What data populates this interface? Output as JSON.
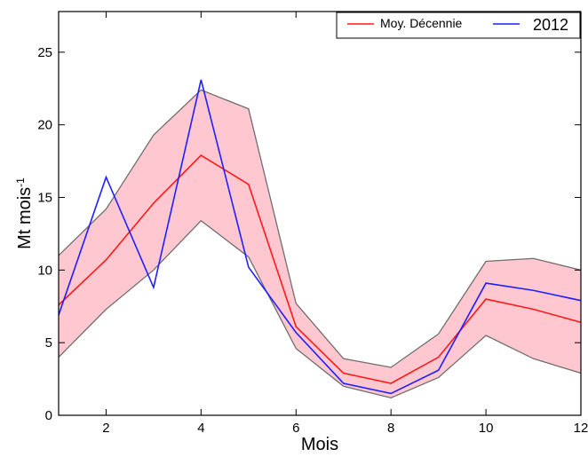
{
  "chart_data": {
    "type": "line",
    "xlabel": "Mois",
    "ylabel": "Mt mois",
    "ylabel_superscript": "-1",
    "xlim": [
      1,
      12
    ],
    "ylim": [
      0,
      27.8
    ],
    "xticks": [
      2,
      4,
      6,
      8,
      10,
      12
    ],
    "yticks": [
      0,
      5,
      10,
      15,
      20,
      25
    ],
    "grid": false,
    "legend_position": "top-right",
    "band": {
      "x": [
        1,
        2,
        3,
        4,
        5,
        6,
        7,
        8,
        9,
        10,
        11,
        12
      ],
      "upper": [
        11.0,
        14.2,
        19.3,
        22.4,
        21.1,
        7.7,
        3.9,
        3.3,
        5.6,
        10.6,
        10.8,
        10.0
      ],
      "lower": [
        4.0,
        7.3,
        10.0,
        13.4,
        10.9,
        4.6,
        2.0,
        1.2,
        2.6,
        5.5,
        3.9,
        2.9
      ],
      "fill_color": "#ffc8d0",
      "edge_color": "#6e6e6e"
    },
    "x": [
      1,
      2,
      3,
      4,
      5,
      6,
      7,
      8,
      9,
      10,
      11,
      12
    ],
    "series": [
      {
        "name": "Moy. Décennie",
        "color": "#ff1a1a",
        "values": [
          7.6,
          10.7,
          14.6,
          17.9,
          15.9,
          6.1,
          2.9,
          2.2,
          4.0,
          8.0,
          7.3,
          6.4
        ]
      },
      {
        "name": "2012",
        "color": "#1f1fff",
        "values": [
          6.9,
          16.4,
          8.8,
          23.1,
          10.2,
          5.7,
          2.2,
          1.5,
          3.1,
          9.1,
          8.6,
          7.9
        ]
      }
    ]
  }
}
